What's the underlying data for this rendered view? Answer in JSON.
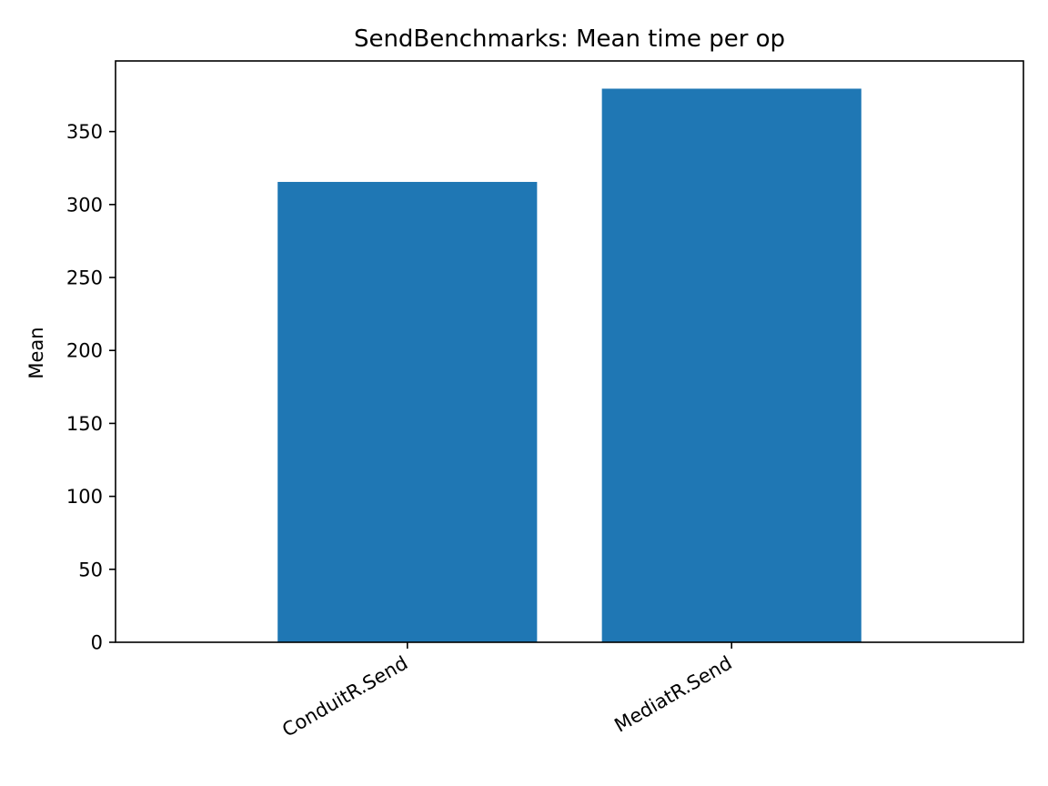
{
  "chart_data": {
    "type": "bar",
    "title": "SendBenchmarks: Mean time per op",
    "xlabel": "",
    "ylabel": "Mean",
    "categories": [
      "ConduitR.Send",
      "MediatR.Send"
    ],
    "values": [
      315.5,
      379.4
    ],
    "ylim": [
      0,
      398.4
    ],
    "yticks": [
      0,
      50,
      100,
      150,
      200,
      250,
      300,
      350
    ],
    "bar_color": "#1f77b4",
    "grid": false,
    "legend": "none",
    "xtick_rotation": "30 degrees, right-aligned"
  }
}
